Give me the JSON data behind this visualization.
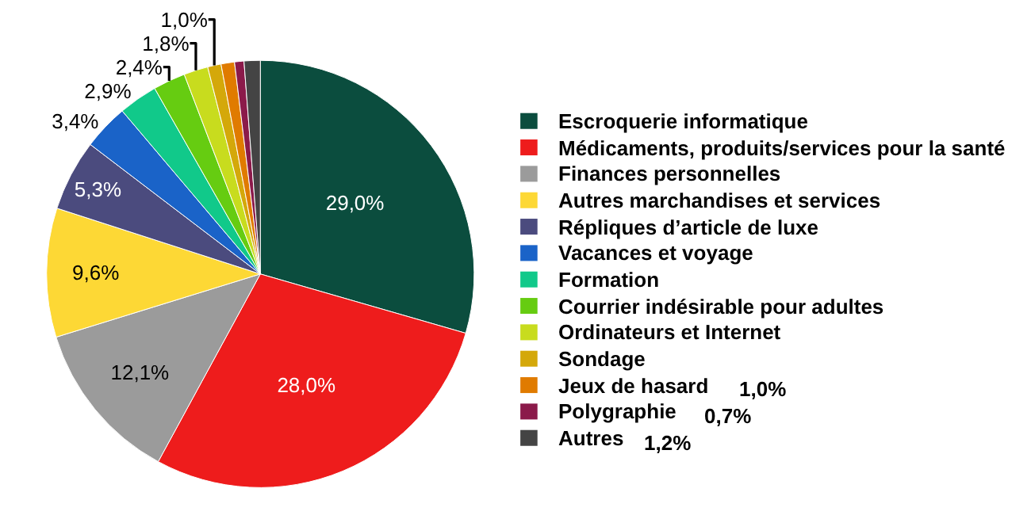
{
  "chart_data": {
    "type": "pie",
    "legend": "right",
    "categories": [
      "Escroquerie informatique",
      "Médicaments, produits/services pour la santé",
      "Finances personnelles",
      "Autres marchandises et services",
      "Répliques d’article de luxe",
      "Vacances et voyage",
      "Formation",
      "Courrier indésirable pour adultes",
      "Ordinateurs et Internet",
      "Sondage",
      "Jeux de hasard",
      "Polygraphie",
      "Autres"
    ],
    "values": [
      29.0,
      28.0,
      12.1,
      9.6,
      5.3,
      3.4,
      2.9,
      2.4,
      1.8,
      1.0,
      1.0,
      0.7,
      1.2
    ],
    "colors": [
      "#0b4d3e",
      "#ee1c1c",
      "#9b9b9b",
      "#fdd835",
      "#4b4b7e",
      "#1a63c8",
      "#11c98a",
      "#66cc11",
      "#c8dc1e",
      "#d4a80a",
      "#e07b00",
      "#8b1a4a",
      "#444444"
    ],
    "value_labels": [
      "29,0%",
      "28,0%",
      "12,1%",
      "9,6%",
      "5,3%",
      "3,4%",
      "2,9%",
      "2,4%",
      "1,8%",
      "1,0%",
      null,
      null,
      null
    ],
    "annotations": [
      {
        "text": "1,0%",
        "x": "Jeux de hasard"
      },
      {
        "text": "0,7%",
        "x": "Polygraphie"
      },
      {
        "text": "1,2%",
        "x": "Autres"
      }
    ]
  }
}
